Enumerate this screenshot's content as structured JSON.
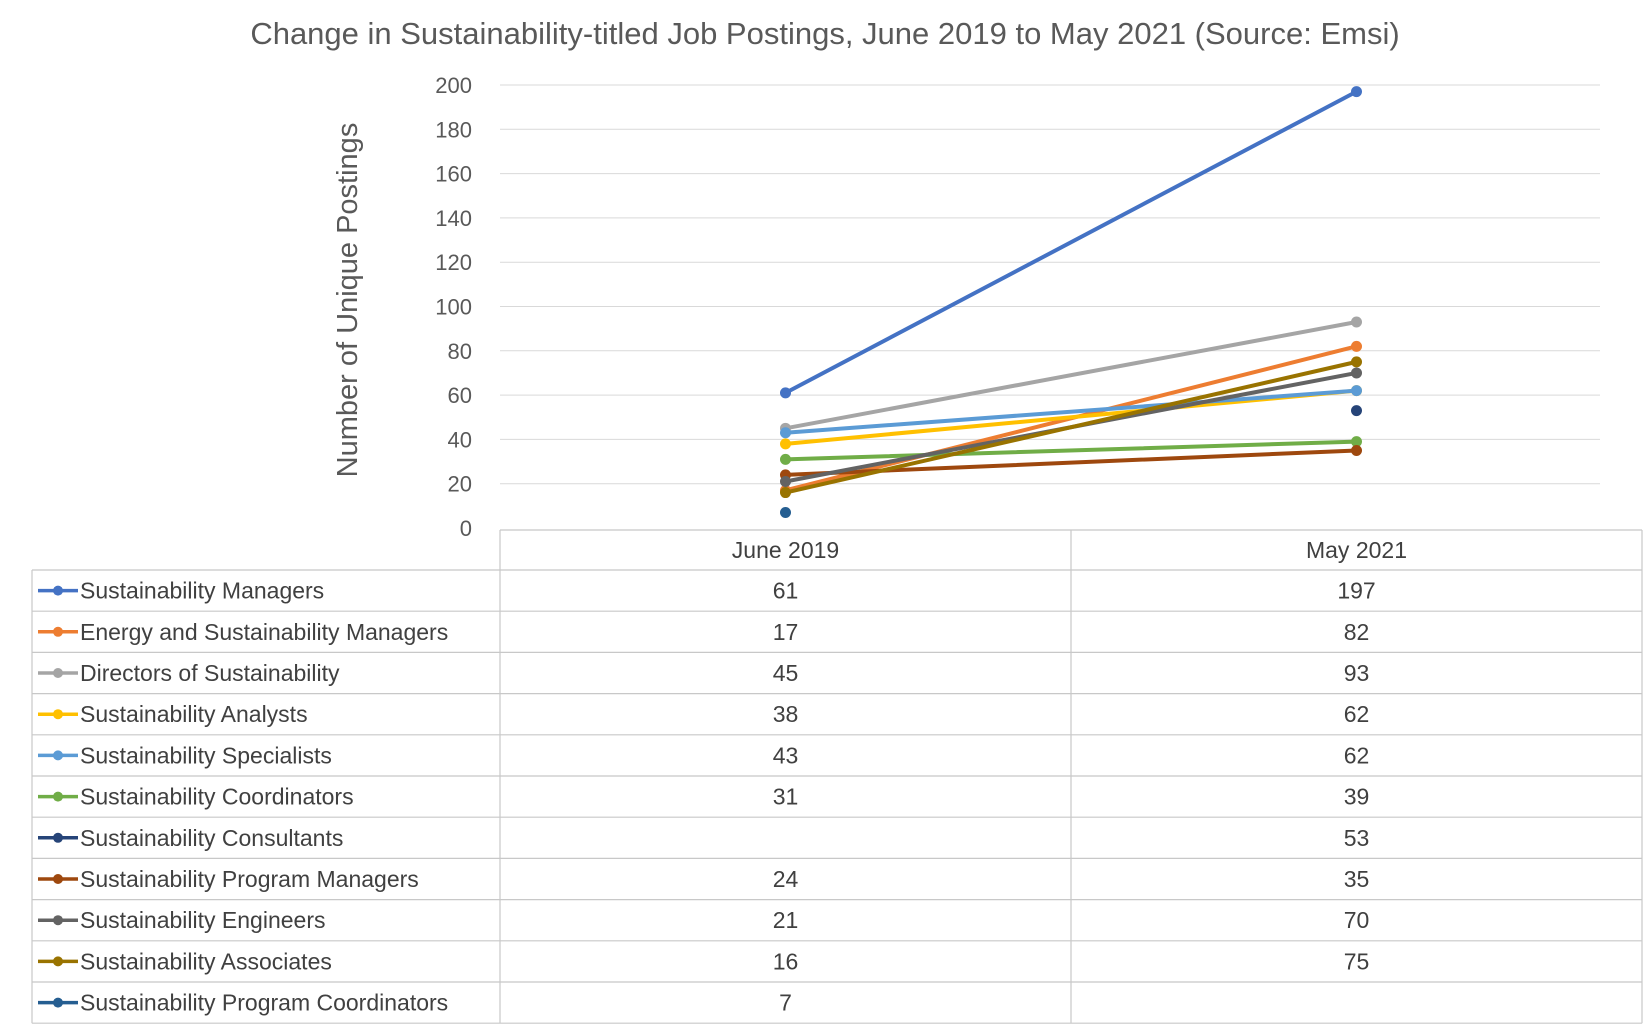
{
  "chart_data": {
    "type": "line",
    "title": "Change in Sustainability-titled Job Postings, June 2019 to May 2021 (Source: Emsi)",
    "ylabel": "Number of Unique Postings",
    "xlabel": "",
    "categories": [
      "June 2019",
      "May 2021"
    ],
    "ylim": [
      0,
      200
    ],
    "yticks": [
      0,
      20,
      40,
      60,
      80,
      100,
      120,
      140,
      160,
      180,
      200
    ],
    "grid": true,
    "legend": "data-table-below",
    "series": [
      {
        "name": "Sustainability Managers",
        "color": "#4472C4",
        "values": [
          61,
          197
        ]
      },
      {
        "name": "Energy and Sustainability Managers",
        "color": "#ED7D31",
        "values": [
          17,
          82
        ]
      },
      {
        "name": "Directors of Sustainability",
        "color": "#A5A5A5",
        "values": [
          45,
          93
        ]
      },
      {
        "name": "Sustainability Analysts",
        "color": "#FFC000",
        "values": [
          38,
          62
        ]
      },
      {
        "name": "Sustainability Specialists",
        "color": "#5B9BD5",
        "values": [
          43,
          62
        ]
      },
      {
        "name": "Sustainability Coordinators",
        "color": "#70AD47",
        "values": [
          31,
          39
        ]
      },
      {
        "name": "Sustainability Consultants",
        "color": "#264478",
        "values": [
          null,
          53
        ]
      },
      {
        "name": "Sustainability Program Managers",
        "color": "#9E480E",
        "values": [
          24,
          35
        ]
      },
      {
        "name": "Sustainability Engineers",
        "color": "#636363",
        "values": [
          21,
          70
        ]
      },
      {
        "name": "Sustainability Associates",
        "color": "#997300",
        "values": [
          16,
          75
        ]
      },
      {
        "name": "Sustainability Program Coordinators",
        "color": "#255E91",
        "values": [
          7,
          null
        ]
      }
    ]
  }
}
